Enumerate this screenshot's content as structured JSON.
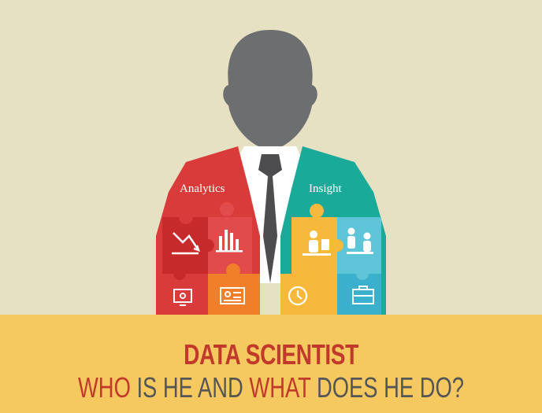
{
  "labels": {
    "left_shoulder": "Analytics",
    "right_shoulder": "Insight"
  },
  "title": {
    "line1": "DATA SCIENTIST",
    "line2_parts": [
      "WHO",
      " IS HE AND ",
      "WHAT",
      " DOES HE DO?"
    ]
  },
  "colors": {
    "background": "#e7e1c4",
    "banner": "#f6c960",
    "head": "#6d6e70",
    "tie": "#4d4d4f",
    "accent_red": "#c0392b",
    "text_gray": "#555555",
    "analytics_red": "#d93a3a",
    "insight_teal": "#1aaa9a",
    "orange": "#f17f2a",
    "yellow": "#f6b93b",
    "light_blue": "#5ec4d8"
  },
  "icons": [
    "trend-down-chart-icon",
    "bar-chart-icon",
    "person-at-desk-icon",
    "people-meeting-icon",
    "computer-monitor-icon",
    "id-card-icon",
    "clock-icon",
    "briefcase-icon"
  ]
}
